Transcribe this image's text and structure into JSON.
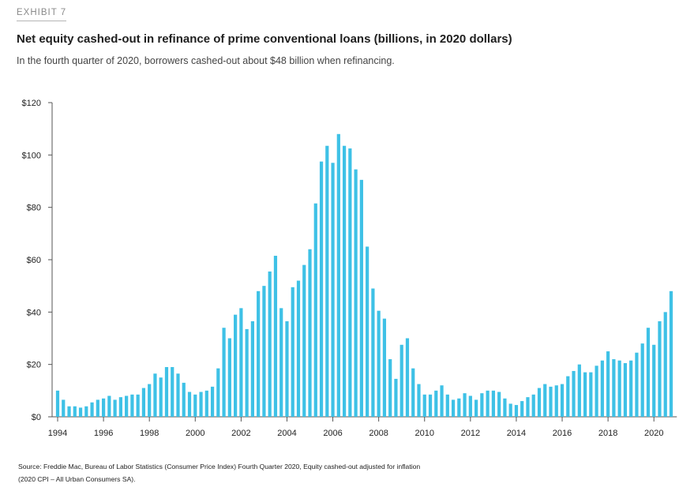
{
  "header": {
    "exhibit": "EXHIBIT 7",
    "title": "Net equity cashed-out in refinance of prime conventional loans (billions, in 2020 dollars)",
    "subtitle": "In the fourth quarter of 2020, borrowers cashed-out about $48 billion when refinancing."
  },
  "footer": {
    "source_line1": "Source: Freddie Mac, Bureau of Labor Statistics (Consumer Price Index) Fourth Quarter 2020, Equity cashed-out adjusted for inflation",
    "source_line2": "(2020 CPI – All Urban Consumers SA)."
  },
  "colors": {
    "bar": "#3ec1e6",
    "axis": "#555555"
  },
  "chart_data": {
    "type": "bar",
    "frequency": "quarterly",
    "x_start": "1994 Q1",
    "x_end": "2020 Q4",
    "ylim": [
      0,
      120
    ],
    "yticks": [
      0,
      20,
      40,
      60,
      80,
      100,
      120
    ],
    "ytick_labels": [
      "$0",
      "$20",
      "$40",
      "$60",
      "$80",
      "$100",
      "$120"
    ],
    "xticks": [
      1994,
      1996,
      1998,
      2000,
      2002,
      2004,
      2006,
      2008,
      2010,
      2012,
      2014,
      2016,
      2018,
      2020
    ],
    "xtick_labels": [
      "1994",
      "1996",
      "1998",
      "2000",
      "2002",
      "2004",
      "2006",
      "2008",
      "2010",
      "2012",
      "2014",
      "2016",
      "2018",
      "2020"
    ],
    "grid": false,
    "legend": "none",
    "series": [
      {
        "values": [
          10,
          6.5,
          4,
          4,
          3.5,
          4,
          5.5,
          6.5,
          7,
          8,
          6.5,
          7.5,
          8,
          8.5,
          8.5,
          11,
          12.5,
          16.5,
          15,
          19,
          19,
          16.5,
          13,
          9.5,
          8.5,
          9.5,
          10,
          11.5,
          18.5,
          34,
          30,
          39,
          41.5,
          33.5,
          36.5,
          48,
          50,
          55.5,
          61.5,
          41.5,
          36.5,
          49.5,
          52,
          58,
          64,
          81.5,
          97.5,
          103.5,
          97,
          108,
          103.5,
          102.5,
          94.5,
          90.5,
          65,
          49,
          40.5,
          37.5,
          22,
          14.5,
          27.5,
          30,
          18.5,
          12.5,
          8.5,
          8.5,
          10,
          12,
          8.5,
          6.5,
          7,
          9,
          8,
          6.5,
          9,
          10,
          10,
          9.5,
          7,
          5,
          4.5,
          6,
          7.5,
          8.5,
          11,
          12.5,
          11.5,
          12,
          12.5,
          15.5,
          17.5,
          20,
          17,
          17,
          19.5,
          21.5,
          25,
          22,
          21.5,
          20.5,
          21.5,
          24.5,
          28,
          34,
          27.5,
          36.5,
          40,
          48
        ]
      }
    ]
  }
}
